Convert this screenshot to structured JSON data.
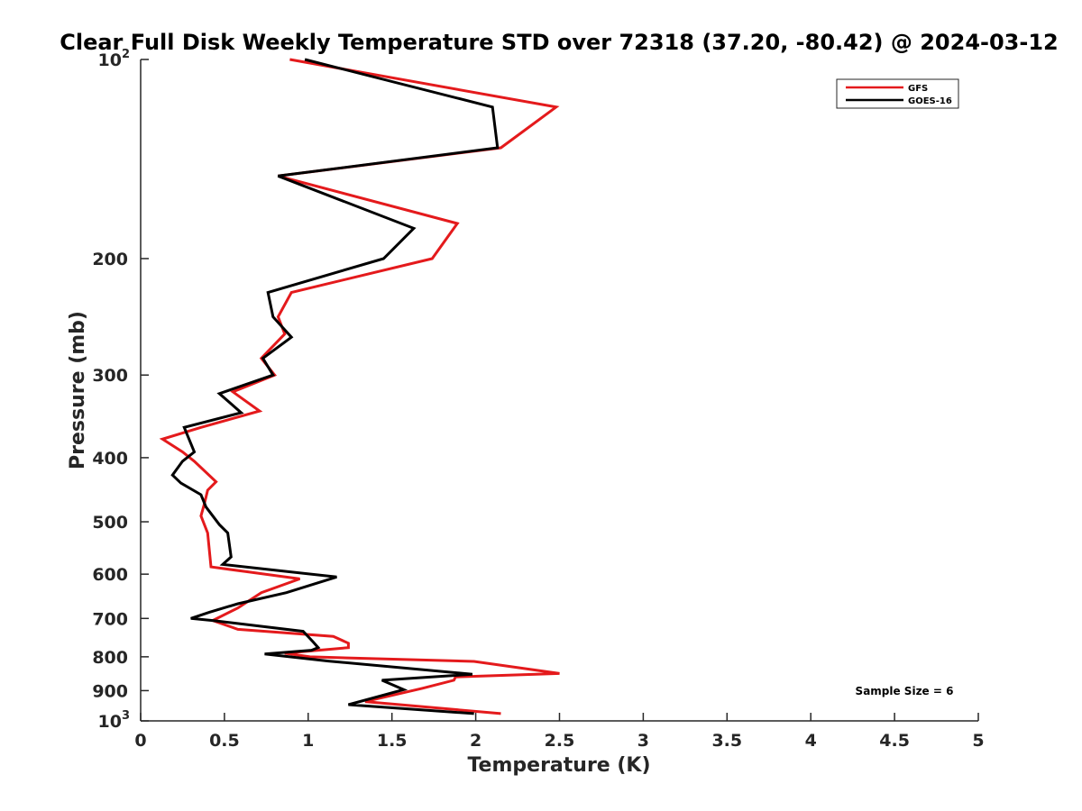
{
  "chart_data": {
    "type": "line",
    "title": "Clear Full Disk Weekly Temperature STD over 72318 (37.20, -80.42) @ 2024-03-12",
    "xlabel": "Temperature (K)",
    "ylabel": "Pressure (mb)",
    "xlim": [
      0,
      5
    ],
    "ylim": [
      100,
      1000
    ],
    "y_scale": "log",
    "y_reversed": true,
    "grid": false,
    "legend_position": "top-right",
    "x_ticks": [
      {
        "value": 0,
        "label": "0"
      },
      {
        "value": 0.5,
        "label": "0.5"
      },
      {
        "value": 1,
        "label": "1"
      },
      {
        "value": 1.5,
        "label": "1.5"
      },
      {
        "value": 2,
        "label": "2"
      },
      {
        "value": 2.5,
        "label": "2.5"
      },
      {
        "value": 3,
        "label": "3"
      },
      {
        "value": 3.5,
        "label": "3.5"
      },
      {
        "value": 4,
        "label": "4"
      },
      {
        "value": 4.5,
        "label": "4.5"
      },
      {
        "value": 5,
        "label": "5"
      }
    ],
    "y_ticks": [
      {
        "value": 100,
        "label": "10",
        "sup": "2"
      },
      {
        "value": 200,
        "label": "200",
        "sup": ""
      },
      {
        "value": 300,
        "label": "300",
        "sup": ""
      },
      {
        "value": 400,
        "label": "400",
        "sup": ""
      },
      {
        "value": 500,
        "label": "500",
        "sup": ""
      },
      {
        "value": 600,
        "label": "600",
        "sup": ""
      },
      {
        "value": 700,
        "label": "700",
        "sup": ""
      },
      {
        "value": 800,
        "label": "800",
        "sup": ""
      },
      {
        "value": 900,
        "label": "900",
        "sup": ""
      },
      {
        "value": 1000,
        "label": "10",
        "sup": "3"
      }
    ],
    "annotation": "Sample Size = 6",
    "series": [
      {
        "name": "GFS",
        "color": "#e41a1c",
        "x": [
          0.89,
          2.48,
          2.15,
          0.82,
          1.89,
          1.74,
          0.9,
          0.82,
          0.86,
          0.72,
          0.8,
          0.55,
          0.71,
          0.36,
          0.13,
          0.25,
          0.32,
          0.45,
          0.4,
          0.38,
          0.36,
          0.4,
          0.42,
          0.95,
          0.72,
          0.58,
          0.43,
          0.58,
          1.15,
          1.24,
          1.24,
          0.86,
          1.01,
          1.99,
          2.5,
          1.88,
          1.87,
          1.68,
          1.34,
          2.15
        ],
        "y": [
          100,
          118,
          136,
          150,
          177,
          200,
          225,
          245,
          260,
          283,
          300,
          318,
          340,
          360,
          375,
          392,
          405,
          435,
          448,
          470,
          490,
          520,
          585,
          610,
          640,
          675,
          705,
          727,
          745,
          763,
          775,
          790,
          800,
          813,
          848,
          858,
          868,
          893,
          935,
          975
        ]
      },
      {
        "name": "GOES-16",
        "color": "#000000",
        "x": [
          0.98,
          2.1,
          2.13,
          0.82,
          1.63,
          1.45,
          0.76,
          0.79,
          0.9,
          0.73,
          0.79,
          0.47,
          0.6,
          0.26,
          0.32,
          0.25,
          0.19,
          0.24,
          0.36,
          0.39,
          0.47,
          0.52,
          0.54,
          0.49,
          1.17,
          0.87,
          0.58,
          0.41,
          0.3,
          0.43,
          0.97,
          1.03,
          1.06,
          1.02,
          0.74,
          1.12,
          1.98,
          1.44,
          1.57,
          1.24,
          1.99
        ],
        "y": [
          100,
          118,
          136,
          150,
          180,
          200,
          225,
          245,
          263,
          283,
          300,
          320,
          342,
          360,
          392,
          405,
          425,
          437,
          455,
          475,
          505,
          520,
          565,
          580,
          606,
          640,
          665,
          685,
          700,
          705,
          732,
          760,
          775,
          782,
          792,
          812,
          850,
          868,
          897,
          945,
          975
        ]
      }
    ]
  }
}
